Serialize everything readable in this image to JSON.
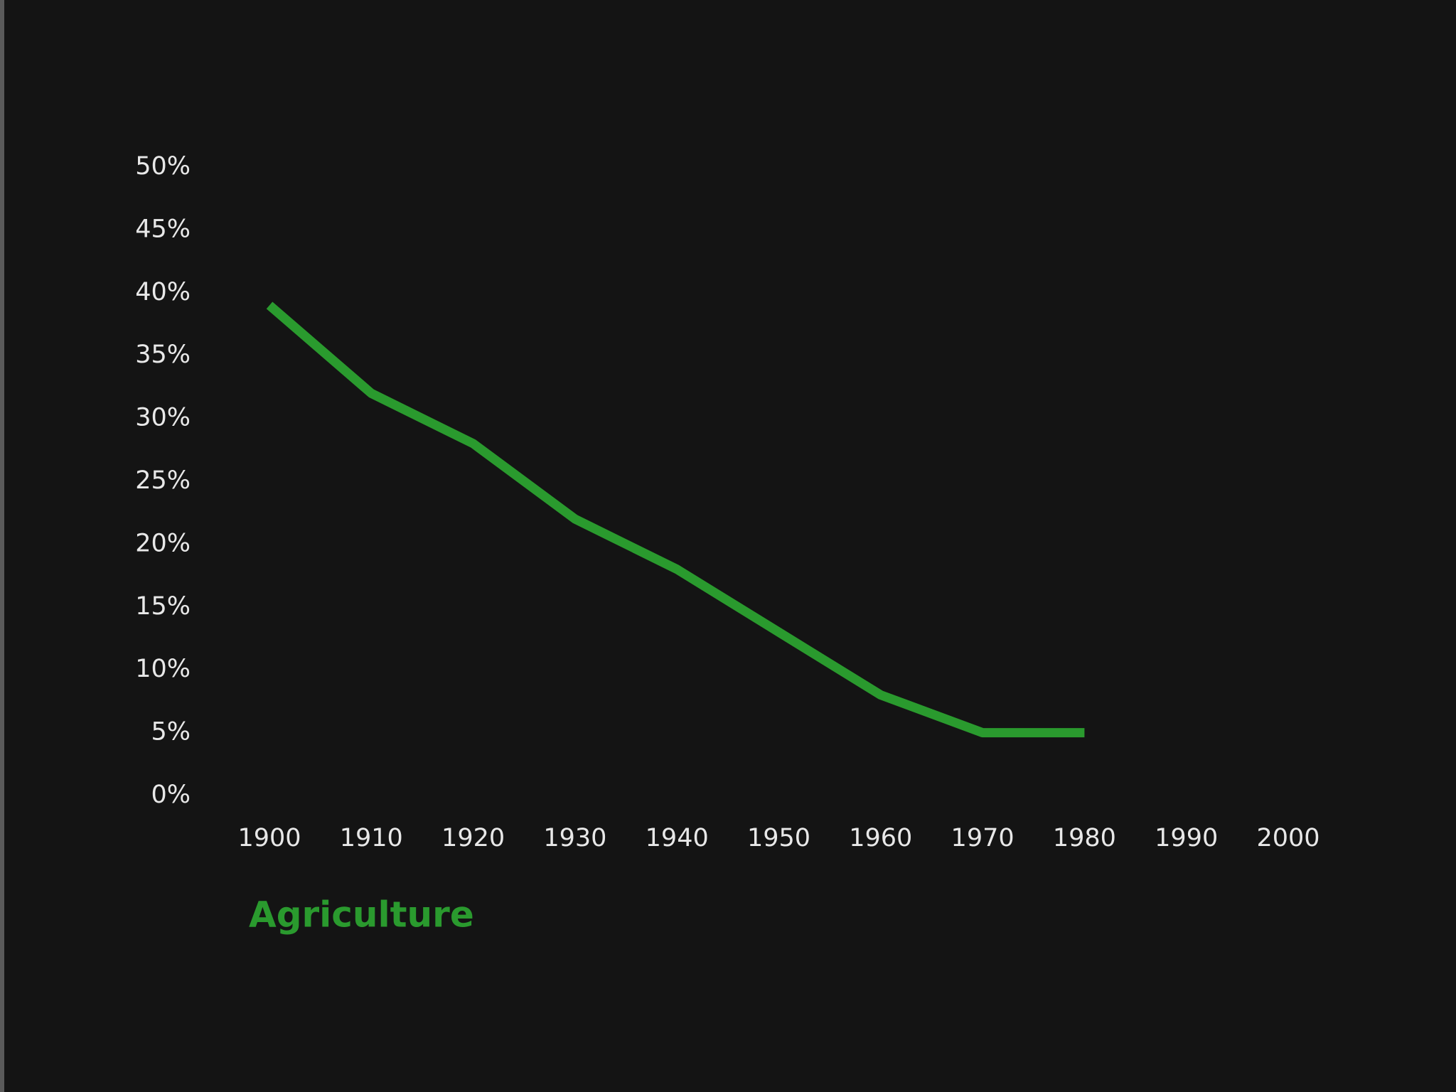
{
  "chart_data": {
    "type": "line",
    "x": [
      1900,
      1910,
      1920,
      1930,
      1940,
      1950,
      1960,
      1970,
      1980
    ],
    "series": [
      {
        "name": "Agriculture",
        "color": "#2a9a2e",
        "values": [
          39,
          32,
          28,
          22,
          18,
          13,
          8,
          5,
          5
        ]
      }
    ],
    "xlim": [
      1900,
      2000
    ],
    "xticks": [
      1900,
      1910,
      1920,
      1930,
      1940,
      1950,
      1960,
      1970,
      1980,
      1990,
      2000
    ],
    "ylim": [
      0,
      50
    ],
    "yticks": [
      {
        "value": 0,
        "label": "0%"
      },
      {
        "value": 5,
        "label": "5%"
      },
      {
        "value": 10,
        "label": "10%"
      },
      {
        "value": 15,
        "label": "15%"
      },
      {
        "value": 20,
        "label": "20%"
      },
      {
        "value": 25,
        "label": "25%"
      },
      {
        "value": 30,
        "label": "30%"
      },
      {
        "value": 35,
        "label": "35%"
      },
      {
        "value": 40,
        "label": "40%"
      },
      {
        "value": 45,
        "label": "45%"
      },
      {
        "value": 50,
        "label": "50%"
      }
    ],
    "grid": false
  }
}
